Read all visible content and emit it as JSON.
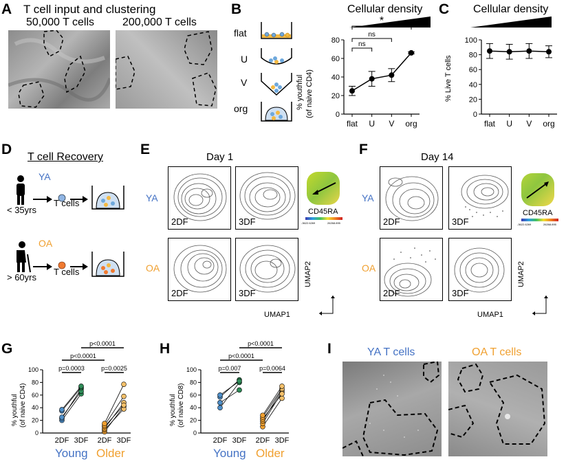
{
  "panels": {
    "A": {
      "letter": "A",
      "title": "T cell input and clustering",
      "left_label": "50,000 T cells",
      "right_label": "200,000 T cells"
    },
    "B": {
      "letter": "B",
      "wells": [
        "flat",
        "U",
        "V",
        "org"
      ],
      "chart_title": "Cellular density",
      "ylabel_line1": "% youthful",
      "ylabel_line2": "(of naive CD4)",
      "sig": [
        "ns",
        "ns",
        "*"
      ]
    },
    "C": {
      "letter": "C",
      "chart_title": "Cellular density"
    },
    "D": {
      "letter": "D",
      "title": "T cell Recovery",
      "ya_label": "YA",
      "ya_age": "< 35yrs",
      "oa_label": "OA",
      "oa_age": "> 60yrs",
      "tcells": "T cells"
    },
    "E": {
      "letter": "E",
      "title": "Day 1",
      "row1": "YA",
      "row2": "OA",
      "c1": "2DF",
      "c2": "3DF",
      "marker": "CD45RA",
      "scale_low": "-3622.6269",
      "scale_high": "26268.895",
      "umap1": "UMAP1",
      "umap2": "UMAP2"
    },
    "F": {
      "letter": "F",
      "title": "Day 14",
      "row1": "YA",
      "row2": "OA",
      "c1": "2DF",
      "c2": "3DF",
      "marker": "CD45RA",
      "scale_low": "-3622.6269",
      "scale_high": "26268.895",
      "umap1": "UMAP1",
      "umap2": "UMAP2"
    },
    "G": {
      "letter": "G",
      "ylabel_line1": "% youthful",
      "ylabel_line2": "(of naive CD4)",
      "p_top": "p<0.0001",
      "p_mid": "p<0.0001",
      "p_young": "p=0.0003",
      "p_older": "p=0.0025",
      "young": "Young",
      "older": "Older"
    },
    "H": {
      "letter": "H",
      "ylabel_line1": "% youthful",
      "ylabel_line2": "(of naive CD8)",
      "p_top": "p<0.0001",
      "p_mid": "p<0.0001",
      "p_young": "p=0.007",
      "p_older": "p=0.0064",
      "young": "Young",
      "older": "Older"
    },
    "I": {
      "letter": "I",
      "left_label": "YA T cells",
      "right_label": "OA T cells"
    }
  },
  "colors": {
    "young": "#4472c4",
    "young_fill": "#4f8fc9",
    "young_green": "#2e8b57",
    "older": "#f0a030",
    "older_fill": "#f4c06a"
  },
  "chart_data": [
    {
      "type": "line",
      "panel": "B",
      "title": "Cellular density",
      "categories": [
        "flat",
        "U",
        "V",
        "org"
      ],
      "values": [
        25,
        38,
        42,
        66
      ],
      "errors": [
        5,
        8,
        7,
        1
      ],
      "ylabel": "% youthful (of naive CD4)",
      "ylim": [
        0,
        80
      ],
      "yticks": [
        0,
        20,
        40,
        60,
        80
      ]
    },
    {
      "type": "line",
      "panel": "C",
      "title": "Cellular density",
      "categories": [
        "flat",
        "U",
        "V",
        "org"
      ],
      "values": [
        85,
        84,
        85,
        84
      ],
      "errors": [
        10,
        10,
        10,
        8
      ],
      "ylabel": "% Live T cells",
      "ylim": [
        0,
        100
      ],
      "yticks": [
        0,
        20,
        40,
        60,
        80,
        100
      ]
    },
    {
      "type": "scatter",
      "panel": "G",
      "categories": [
        "2DF",
        "3DF",
        "2DF",
        "3DF"
      ],
      "groups": [
        "Young",
        "Older"
      ],
      "ylabel": "% youthful (of naive CD4)",
      "ylim": [
        0,
        100
      ],
      "yticks": [
        0,
        20,
        40,
        60,
        80,
        100
      ],
      "young_pairs": [
        [
          20,
          62
        ],
        [
          23,
          70
        ],
        [
          25,
          66
        ],
        [
          35,
          72
        ],
        [
          37,
          74
        ]
      ],
      "older_pairs": [
        [
          2,
          42
        ],
        [
          5,
          38
        ],
        [
          7,
          48
        ],
        [
          10,
          44
        ],
        [
          12,
          58
        ],
        [
          15,
          77
        ]
      ]
    },
    {
      "type": "scatter",
      "panel": "H",
      "categories": [
        "2DF",
        "3DF",
        "2DF",
        "3DF"
      ],
      "groups": [
        "Young",
        "Older"
      ],
      "ylabel": "% youthful (of naive CD8)",
      "ylim": [
        0,
        100
      ],
      "yticks": [
        0,
        20,
        40,
        60,
        80,
        100
      ],
      "young_pairs": [
        [
          40,
          80
        ],
        [
          48,
          68
        ],
        [
          57,
          84
        ],
        [
          60,
          82
        ]
      ],
      "older_pairs": [
        [
          10,
          55
        ],
        [
          15,
          65
        ],
        [
          19,
          68
        ],
        [
          22,
          62
        ],
        [
          25,
          70
        ],
        [
          28,
          74
        ]
      ]
    }
  ]
}
